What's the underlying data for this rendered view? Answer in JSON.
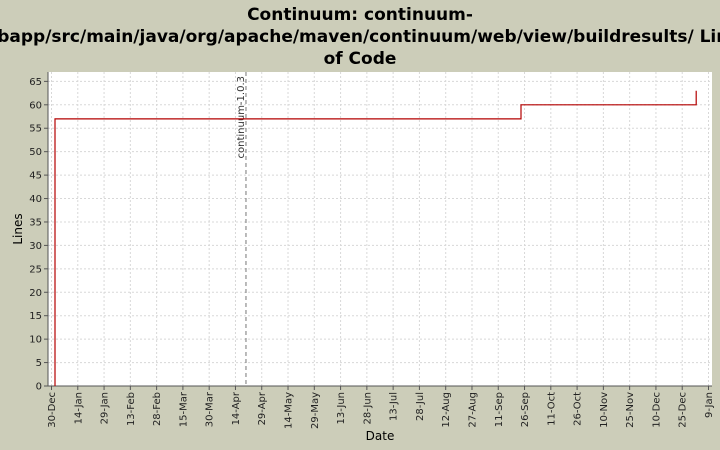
{
  "chart_data": {
    "type": "line",
    "title_lines": [
      "Continuum: continuum-",
      "webapp/src/main/java/org/apache/maven/continuum/web/view/buildresults/ Lines",
      "of Code"
    ],
    "xlabel": "Date",
    "ylabel": "Lines",
    "ylim": [
      0,
      67
    ],
    "yticks": [
      0,
      5,
      10,
      15,
      20,
      25,
      30,
      35,
      40,
      45,
      50,
      55,
      60,
      65
    ],
    "xlim": [
      "2005-12-28",
      "2007-01-11"
    ],
    "xticks": [
      {
        "date": "2005-12-30",
        "label": "30-Dec"
      },
      {
        "date": "2006-01-14",
        "label": "14-Jan"
      },
      {
        "date": "2006-01-29",
        "label": "29-Jan"
      },
      {
        "date": "2006-02-13",
        "label": "13-Feb"
      },
      {
        "date": "2006-02-28",
        "label": "28-Feb"
      },
      {
        "date": "2006-03-15",
        "label": "15-Mar"
      },
      {
        "date": "2006-03-30",
        "label": "30-Mar"
      },
      {
        "date": "2006-04-14",
        "label": "14-Apr"
      },
      {
        "date": "2006-04-29",
        "label": "29-Apr"
      },
      {
        "date": "2006-05-14",
        "label": "14-May"
      },
      {
        "date": "2006-05-29",
        "label": "29-May"
      },
      {
        "date": "2006-06-13",
        "label": "13-Jun"
      },
      {
        "date": "2006-06-28",
        "label": "28-Jun"
      },
      {
        "date": "2006-07-13",
        "label": "13-Jul"
      },
      {
        "date": "2006-07-28",
        "label": "28-Jul"
      },
      {
        "date": "2006-08-12",
        "label": "12-Aug"
      },
      {
        "date": "2006-08-27",
        "label": "27-Aug"
      },
      {
        "date": "2006-09-11",
        "label": "11-Sep"
      },
      {
        "date": "2006-09-26",
        "label": "26-Sep"
      },
      {
        "date": "2006-10-11",
        "label": "11-Oct"
      },
      {
        "date": "2006-10-26",
        "label": "26-Oct"
      },
      {
        "date": "2006-11-10",
        "label": "10-Nov"
      },
      {
        "date": "2006-11-25",
        "label": "25-Nov"
      },
      {
        "date": "2006-12-10",
        "label": "10-Dec"
      },
      {
        "date": "2006-12-25",
        "label": "25-Dec"
      },
      {
        "date": "2007-01-09",
        "label": "9-Jan"
      }
    ],
    "series": [
      {
        "color": "#b40000",
        "step": true,
        "points": [
          {
            "x": "2006-01-01",
            "y": 0
          },
          {
            "x": "2006-01-01",
            "y": 57
          },
          {
            "x": "2006-09-24",
            "y": 57
          },
          {
            "x": "2006-09-24",
            "y": 60
          },
          {
            "x": "2007-01-02",
            "y": 60
          },
          {
            "x": "2007-01-02",
            "y": 63
          }
        ]
      }
    ],
    "markers": [
      {
        "date": "2006-04-20",
        "label": "continuum-1.0.3"
      }
    ],
    "grid": true,
    "colors": {
      "background": "#cccdb9",
      "plot_background": "#ffffff",
      "grid": "#d8d8d8",
      "axis": "#555555"
    }
  }
}
